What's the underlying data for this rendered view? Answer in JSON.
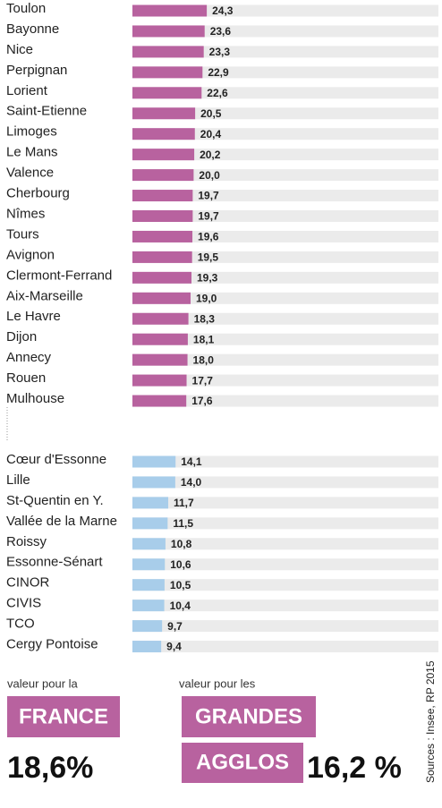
{
  "chart_data": [
    {
      "type": "bar",
      "orientation": "horizontal",
      "color": "#b8629f",
      "xlim": [
        0,
        100
      ],
      "categories": [
        "Toulon",
        "Bayonne",
        "Nice",
        "Perpignan",
        "Lorient",
        "Saint-Etienne",
        "Limoges",
        "Le Mans",
        "Valence",
        "Cherbourg",
        "Nîmes",
        "Tours",
        "Avignon",
        "Clermont-Ferrand",
        "Aix-Marseille",
        "Le Havre",
        "Dijon",
        "Annecy",
        "Rouen",
        "Mulhouse"
      ],
      "values": [
        24.3,
        23.6,
        23.3,
        22.9,
        22.6,
        20.5,
        20.4,
        20.2,
        20.0,
        19.7,
        19.7,
        19.6,
        19.5,
        19.3,
        19.0,
        18.3,
        18.1,
        18.0,
        17.7,
        17.6
      ],
      "value_labels": [
        "24,3",
        "23,6",
        "23,3",
        "22,9",
        "22,6",
        "20,5",
        "20,4",
        "20,2",
        "20,0",
        "19,7",
        "19,7",
        "19,6",
        "19,5",
        "19,3",
        "19,0",
        "18,3",
        "18,1",
        "18,0",
        "17,7",
        "17,6"
      ]
    },
    {
      "type": "bar",
      "orientation": "horizontal",
      "color": "#a8cdea",
      "xlim": [
        0,
        100
      ],
      "categories": [
        "Cœur d'Essonne",
        "Lille",
        "St-Quentin en Y.",
        "Vallée de la Marne",
        "Roissy",
        "Essonne-Sénart",
        "CINOR",
        "CIVIS",
        "TCO",
        "Cergy Pontoise"
      ],
      "values": [
        14.1,
        14.0,
        11.7,
        11.5,
        10.8,
        10.6,
        10.5,
        10.4,
        9.7,
        9.4
      ],
      "value_labels": [
        "14,1",
        "14,0",
        "11,7",
        "11,5",
        "10,8",
        "10,6",
        "10,5",
        "10,4",
        "9,7",
        "9,4"
      ]
    }
  ],
  "footer": {
    "france_caption": "valeur pour la",
    "france_label": "FRANCE",
    "france_value": "18,6%",
    "agglos_caption": "valeur pour les",
    "agglos_label_1": "GRANDES",
    "agglos_label_2": "AGGLOS",
    "agglos_value": "16,2 %",
    "source": "Sources : Insee, RP 2015"
  }
}
